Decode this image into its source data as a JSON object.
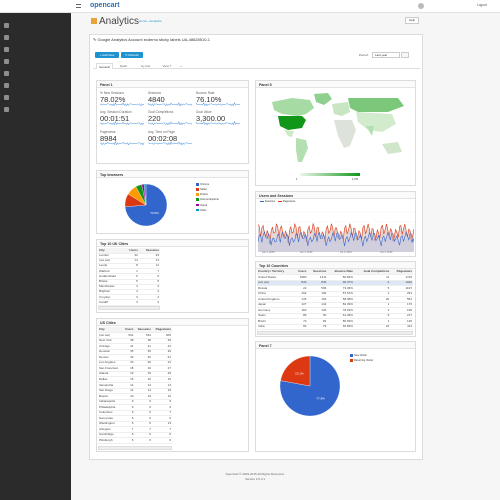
{
  "header": {
    "logo": "opencart",
    "user": "Logout",
    "title": "Analytics",
    "breadcrumb_home": "Home",
    "breadcrumb_current": "Analytics",
    "help": "Help"
  },
  "account_title": "Google Analytics Account ecdemo sticky labels UA-48628510-1",
  "toolbar": {
    "add": "+ Add New",
    "refresh": "↻ Refresh",
    "period_label": "Period:",
    "period_value": "Last year"
  },
  "tabs": [
    "General",
    "Spain",
    "Ivy test",
    "View 7",
    "+"
  ],
  "panel1": {
    "title": "Panel 1",
    "metrics": [
      {
        "label": "% New Sessions",
        "value": "78.02%"
      },
      {
        "label": "Sessions",
        "value": "4840"
      },
      {
        "label": "Bounce Rate",
        "value": "76.10%"
      },
      {
        "label": "Avg. Session Duration",
        "value": "00:01:51"
      },
      {
        "label": "Goal Completions",
        "value": "220"
      },
      {
        "label": "Goal Value",
        "value": "3,300.00"
      },
      {
        "label": "Pageviews",
        "value": "8984"
      },
      {
        "label": "Avg. Time on Page",
        "value": "00:02:08"
      }
    ]
  },
  "panel5": {
    "title": "Panel 5",
    "scale_min": "1",
    "scale_max": "1,071"
  },
  "browsers": {
    "title": "Top browsers",
    "legend": [
      "Chrome",
      "Safari",
      "Firefox",
      "Internet Explorer",
      "Opera",
      "Other"
    ]
  },
  "users_sessions": {
    "title": "Users and Sessions",
    "legend": [
      "Sessions",
      "Pageviews"
    ],
    "ticks": [
      "Jan 1, 2015",
      "Apr 1, 2015",
      "Jul 1, 2015",
      "Oct 1, 2015"
    ]
  },
  "uk_cities": {
    "title": "Top 10 UK Cities",
    "headers": [
      "City",
      "Users",
      "Sessions"
    ],
    "rows": [
      [
        "London",
        "32",
        "33"
      ],
      [
        "(not set)",
        "14",
        "14"
      ],
      [
        "Leeds",
        "8",
        "11"
      ],
      [
        "Watford",
        "1",
        "7"
      ],
      [
        "Huddersfield",
        "5",
        "5"
      ],
      [
        "Bristol",
        "5",
        "5"
      ],
      [
        "Manchester",
        "4",
        "4"
      ],
      [
        "Brighton",
        "4",
        "4"
      ],
      [
        "Croydon",
        "3",
        "4"
      ],
      [
        "Cardiff",
        "3",
        "3"
      ]
    ]
  },
  "countries": {
    "title": "Top 10 Countries",
    "headers": [
      "Country / Territory",
      "Users",
      "Sessions",
      "Bounce Rate",
      "Goal Completions",
      "Pageviews"
    ],
    "rows": [
      [
        "United States",
        "1080",
        "1311",
        "82.84%",
        "11",
        "1726"
      ],
      [
        "(not set)",
        "846",
        "845",
        "90.37%",
        "0",
        "1020"
      ],
      [
        "Russia",
        "22",
        "596",
        "73.36%",
        "5",
        "1197"
      ],
      [
        "China",
        "192",
        "192",
        "87.51%",
        "1",
        "291"
      ],
      [
        "United Kingdom",
        "145",
        "162",
        "68.38%",
        "26",
        "581"
      ],
      [
        "Japan",
        "137",
        "142",
        "82.39%",
        "1",
        "176"
      ],
      [
        "Germany",
        "160",
        "126",
        "78.62%",
        "3",
        "195"
      ],
      [
        "Spain",
        "86",
        "90",
        "61.36%",
        "9",
        "217"
      ],
      [
        "Brazil",
        "73",
        "82",
        "86.59%",
        "1",
        "125"
      ],
      [
        "India",
        "83",
        "79",
        "65.83%",
        "24",
        "413"
      ]
    ]
  },
  "us_cities": {
    "title": "US Cities",
    "headers": [
      "City",
      "Users",
      "Sessions",
      "Pageviews"
    ],
    "rows": [
      [
        "(not set)",
        "534",
        "534",
        "605"
      ],
      [
        "New York",
        "38",
        "38",
        "39"
      ],
      [
        "Chicago",
        "41",
        "41",
        "42"
      ],
      [
        "Houston",
        "35",
        "35",
        "36"
      ],
      [
        "Denver",
        "32",
        "32",
        "61"
      ],
      [
        "Los Angeles",
        "30",
        "30",
        "31"
      ],
      [
        "San Francisco",
        "18",
        "19",
        "27"
      ],
      [
        "Atlanta",
        "19",
        "19",
        "20"
      ],
      [
        "Dallas",
        "15",
        "15",
        "15"
      ],
      [
        "Alexandria",
        "14",
        "14",
        "14"
      ],
      [
        "San Diego",
        "14",
        "14",
        "15"
      ],
      [
        "Boston",
        "10",
        "10",
        "10"
      ],
      [
        "Indianapolis",
        "9",
        "9",
        "9"
      ],
      [
        "Philadelphia",
        "9",
        "9",
        "9"
      ],
      [
        "Columbus",
        "6",
        "6",
        "7"
      ],
      [
        "Sunnyvale",
        "6",
        "6",
        "6"
      ],
      [
        "Washington",
        "6",
        "6",
        "13"
      ],
      [
        "Arlington",
        "7",
        "7",
        "7"
      ],
      [
        "Cambridge",
        "6",
        "6",
        "6"
      ],
      [
        "Pittsburgh",
        "6",
        "6",
        "6"
      ]
    ]
  },
  "panel7": {
    "title": "Panel 7",
    "legend": [
      "New Visitor",
      "Returning Visitor"
    ]
  },
  "footer": {
    "line1": "OpenCart © 2009-2015 All Rights Reserved.",
    "line2": "Version 2.0.3.1"
  },
  "chart_data": [
    {
      "type": "pie",
      "title": "Top browsers",
      "categories": [
        "Chrome",
        "Safari",
        "Firefox",
        "Internet Explorer",
        "Opera",
        "Other"
      ],
      "values": [
        73.6,
        10.2,
        8.1,
        4.8,
        1.8,
        1.5
      ],
      "data_labels": [
        "73.6%",
        "",
        "",
        "",
        "",
        ""
      ],
      "colors": [
        "#3366cc",
        "#dc3912",
        "#ff9900",
        "#109618",
        "#990099",
        "#0099c6"
      ]
    },
    {
      "type": "pie",
      "title": "Panel 7",
      "categories": [
        "New Visitor",
        "Returning Visitor"
      ],
      "values": [
        77.9,
        22.1
      ],
      "data_labels": [
        "77.9%",
        "22.1%"
      ],
      "colors": [
        "#3366cc",
        "#dc3912"
      ]
    }
  ],
  "colors": {
    "sidebar": "#2b2b2b",
    "primary": "#1e91cf",
    "sparkline": "#3d8ad9",
    "map_high": "#109618",
    "map_mid": "#8fd08f"
  }
}
